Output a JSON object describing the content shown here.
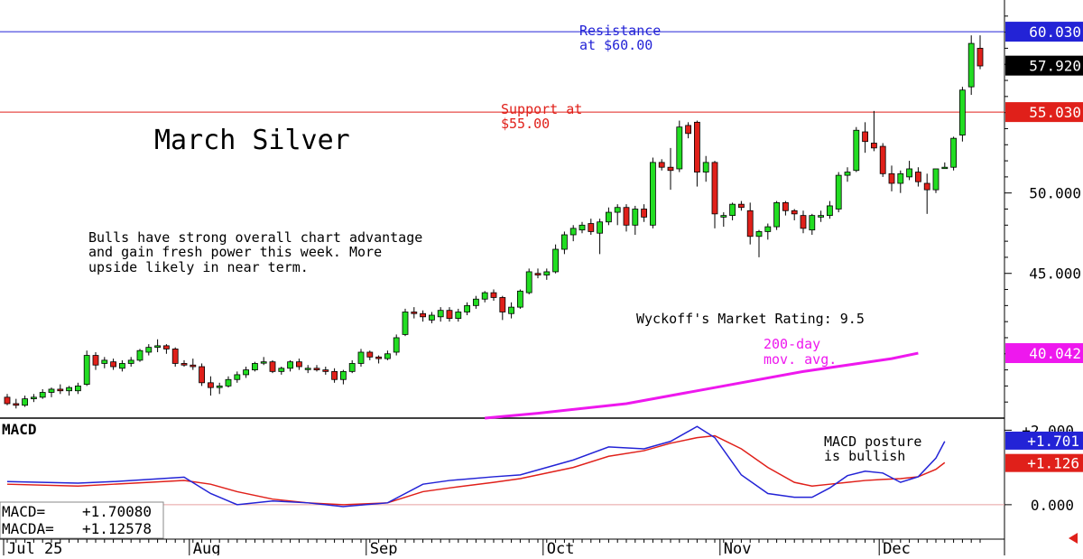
{
  "chart_data": [
    {
      "type": "candlestick",
      "title": "March Silver",
      "y_axis": {
        "scale": "linear",
        "ylim": [
          36.0,
          62.0
        ],
        "tick_labels": [
          "50.000",
          "45.000"
        ],
        "tick_values": [
          50.0,
          45.0
        ]
      },
      "x_axis": {
        "tick_labels": [
          "Jul 25",
          "Aug",
          "Sep",
          "Oct",
          "Nov",
          "Dec"
        ],
        "tick_index": [
          0,
          21,
          41,
          61,
          81,
          99
        ]
      },
      "horizontal_lines": [
        {
          "value": 60.03,
          "label": "60.030",
          "color": "#2323d6"
        },
        {
          "value": 55.03,
          "label": "55.030",
          "color": "#e0201a"
        }
      ],
      "last_price": {
        "value": 57.92,
        "label": "57.920"
      },
      "moving_average": {
        "name": "200-day mov. avg.",
        "label_value": "40.042",
        "value": 40.042,
        "color": "#ee18ee",
        "points": [
          [
            54,
            36.0
          ],
          [
            60,
            36.3
          ],
          [
            70,
            36.9
          ],
          [
            80,
            37.9
          ],
          [
            90,
            38.9
          ],
          [
            100,
            39.7
          ],
          [
            103,
            40.04
          ]
        ]
      },
      "annotations": {
        "resistance": [
          "Resistance",
          "at $60.00"
        ],
        "support": [
          "Support at",
          "$55.00"
        ],
        "commentary": [
          "Bulls have strong overall chart advantage",
          "and gain fresh power this week. More",
          "upside likely in near term."
        ],
        "rating": "Wyckoff's Market Rating: 9.5",
        "ma_label": [
          "200-day",
          "mov. avg."
        ]
      },
      "candles": [
        [
          37.3,
          37.5,
          36.8,
          36.9
        ],
        [
          36.9,
          37.2,
          36.6,
          36.8
        ],
        [
          36.8,
          37.4,
          36.7,
          37.2
        ],
        [
          37.2,
          37.5,
          37.0,
          37.3
        ],
        [
          37.3,
          37.8,
          37.2,
          37.6
        ],
        [
          37.6,
          37.9,
          37.3,
          37.8
        ],
        [
          37.8,
          38.1,
          37.5,
          37.7
        ],
        [
          37.7,
          38.0,
          37.4,
          37.9
        ],
        [
          37.7,
          38.2,
          37.5,
          38.0
        ],
        [
          38.1,
          40.2,
          38.0,
          39.9
        ],
        [
          39.9,
          40.1,
          39.0,
          39.3
        ],
        [
          39.4,
          39.8,
          39.1,
          39.6
        ],
        [
          39.5,
          39.7,
          39.0,
          39.2
        ],
        [
          39.1,
          39.6,
          38.9,
          39.4
        ],
        [
          39.4,
          39.8,
          39.2,
          39.6
        ],
        [
          39.6,
          40.3,
          39.5,
          40.2
        ],
        [
          40.1,
          40.6,
          39.9,
          40.4
        ],
        [
          40.4,
          40.9,
          40.1,
          40.5
        ],
        [
          40.5,
          40.6,
          40.0,
          40.3
        ],
        [
          40.3,
          40.4,
          39.2,
          39.4
        ],
        [
          39.4,
          39.6,
          39.2,
          39.3
        ],
        [
          39.3,
          39.7,
          39.0,
          39.2
        ],
        [
          39.2,
          39.4,
          38.0,
          38.2
        ],
        [
          38.2,
          38.6,
          37.4,
          37.9
        ],
        [
          37.9,
          38.2,
          37.5,
          38.0
        ],
        [
          38.0,
          38.6,
          37.9,
          38.4
        ],
        [
          38.4,
          38.9,
          38.2,
          38.7
        ],
        [
          38.7,
          39.2,
          38.5,
          39.0
        ],
        [
          39.0,
          39.5,
          38.9,
          39.4
        ],
        [
          39.5,
          39.8,
          39.3,
          39.5
        ],
        [
          39.5,
          39.6,
          38.8,
          38.9
        ],
        [
          38.9,
          39.2,
          38.7,
          39.1
        ],
        [
          39.1,
          39.6,
          38.9,
          39.5
        ],
        [
          39.5,
          39.7,
          39.0,
          39.2
        ],
        [
          39.1,
          39.3,
          38.8,
          39.1
        ],
        [
          39.1,
          39.3,
          38.9,
          39.0
        ],
        [
          39.0,
          39.2,
          38.7,
          38.9
        ],
        [
          38.9,
          39.1,
          38.2,
          38.4
        ],
        [
          38.4,
          39.0,
          38.1,
          38.9
        ],
        [
          38.9,
          39.6,
          38.8,
          39.4
        ],
        [
          39.4,
          40.3,
          39.2,
          40.1
        ],
        [
          40.1,
          40.2,
          39.6,
          39.8
        ],
        [
          39.8,
          39.9,
          39.4,
          39.7
        ],
        [
          39.7,
          40.2,
          39.6,
          40.0
        ],
        [
          40.1,
          41.2,
          39.9,
          41.0
        ],
        [
          41.2,
          42.8,
          41.1,
          42.6
        ],
        [
          42.6,
          42.9,
          42.2,
          42.5
        ],
        [
          42.5,
          42.7,
          42.0,
          42.3
        ],
        [
          42.1,
          42.6,
          41.9,
          42.4
        ],
        [
          42.3,
          42.9,
          42.0,
          42.7
        ],
        [
          42.7,
          42.9,
          42.0,
          42.2
        ],
        [
          42.2,
          42.8,
          42.0,
          42.6
        ],
        [
          42.6,
          43.2,
          42.4,
          43.0
        ],
        [
          43.0,
          43.6,
          42.8,
          43.4
        ],
        [
          43.4,
          43.9,
          43.2,
          43.8
        ],
        [
          43.8,
          44.0,
          43.3,
          43.5
        ],
        [
          43.5,
          43.6,
          42.1,
          42.6
        ],
        [
          42.5,
          43.2,
          42.2,
          42.9
        ],
        [
          42.9,
          44.0,
          42.8,
          43.9
        ],
        [
          43.8,
          45.3,
          43.7,
          45.1
        ],
        [
          45.0,
          45.3,
          44.7,
          44.9
        ],
        [
          44.9,
          45.3,
          44.6,
          45.1
        ],
        [
          45.1,
          46.8,
          45.0,
          46.5
        ],
        [
          46.5,
          47.6,
          46.2,
          47.4
        ],
        [
          47.4,
          48.0,
          47.0,
          47.8
        ],
        [
          47.7,
          48.2,
          47.5,
          48.0
        ],
        [
          48.1,
          48.4,
          47.4,
          47.6
        ],
        [
          47.5,
          48.4,
          46.2,
          48.2
        ],
        [
          48.2,
          49.1,
          48.0,
          48.8
        ],
        [
          48.8,
          49.3,
          48.0,
          49.1
        ],
        [
          49.1,
          49.3,
          47.6,
          48.0
        ],
        [
          48.0,
          49.2,
          47.4,
          49.0
        ],
        [
          49.0,
          49.3,
          48.2,
          48.5
        ],
        [
          48.0,
          52.2,
          47.8,
          51.9
        ],
        [
          51.9,
          52.1,
          51.4,
          51.6
        ],
        [
          51.6,
          52.8,
          50.2,
          51.4
        ],
        [
          51.5,
          54.5,
          51.3,
          54.1
        ],
        [
          54.2,
          54.4,
          53.4,
          53.7
        ],
        [
          54.4,
          54.5,
          50.4,
          51.3
        ],
        [
          51.3,
          52.3,
          50.7,
          51.9
        ],
        [
          51.9,
          52.0,
          47.8,
          48.7
        ],
        [
          48.5,
          48.8,
          47.9,
          48.6
        ],
        [
          48.6,
          49.4,
          48.3,
          49.3
        ],
        [
          49.3,
          49.5,
          48.9,
          49.1
        ],
        [
          48.9,
          49.4,
          46.8,
          47.3
        ],
        [
          47.3,
          47.7,
          46.0,
          47.6
        ],
        [
          47.6,
          48.1,
          47.1,
          47.9
        ],
        [
          47.9,
          49.5,
          47.7,
          49.4
        ],
        [
          49.4,
          49.5,
          48.6,
          48.9
        ],
        [
          48.9,
          49.0,
          48.3,
          48.7
        ],
        [
          48.6,
          48.9,
          47.5,
          47.8
        ],
        [
          47.7,
          48.7,
          47.4,
          48.6
        ],
        [
          48.5,
          48.9,
          48.2,
          48.6
        ],
        [
          48.6,
          49.5,
          48.4,
          49.2
        ],
        [
          49.0,
          51.3,
          48.8,
          51.1
        ],
        [
          51.1,
          51.6,
          50.7,
          51.3
        ],
        [
          51.4,
          54.1,
          51.3,
          53.9
        ],
        [
          53.8,
          54.4,
          52.5,
          53.2
        ],
        [
          53.1,
          55.1,
          52.6,
          52.8
        ],
        [
          52.9,
          53.1,
          51.0,
          51.2
        ],
        [
          51.2,
          51.7,
          50.1,
          50.6
        ],
        [
          50.6,
          51.4,
          50.0,
          51.2
        ],
        [
          51.0,
          52.0,
          50.8,
          51.5
        ],
        [
          51.3,
          51.6,
          50.4,
          50.7
        ],
        [
          50.6,
          51.2,
          48.7,
          50.2
        ],
        [
          50.2,
          51.5,
          50.0,
          51.5
        ],
        [
          51.6,
          51.9,
          51.5,
          51.6
        ],
        [
          51.6,
          53.5,
          51.4,
          53.4
        ],
        [
          53.6,
          56.6,
          53.2,
          56.4
        ],
        [
          56.6,
          59.8,
          56.1,
          59.3
        ],
        [
          59.0,
          59.8,
          57.7,
          57.9
        ]
      ]
    },
    {
      "type": "line",
      "title": "MACD",
      "ylim": [
        -0.9,
        2.3
      ],
      "tick_labels": [
        "+2.000",
        "0.000"
      ],
      "tick_values": [
        2.0,
        0.0
      ],
      "zero_line": 0.0,
      "series": [
        {
          "name": "MACD",
          "color": "#2323d6",
          "last_label": "+1.701",
          "points": [
            [
              0,
              0.62
            ],
            [
              8,
              0.58
            ],
            [
              12,
              0.62
            ],
            [
              16,
              0.68
            ],
            [
              20,
              0.74
            ],
            [
              23,
              0.3
            ],
            [
              26,
              0.0
            ],
            [
              30,
              0.1
            ],
            [
              34,
              0.05
            ],
            [
              38,
              -0.05
            ],
            [
              43,
              0.05
            ],
            [
              47,
              0.55
            ],
            [
              50,
              0.65
            ],
            [
              55,
              0.75
            ],
            [
              58,
              0.8
            ],
            [
              64,
              1.2
            ],
            [
              68,
              1.55
            ],
            [
              72,
              1.5
            ],
            [
              75,
              1.7
            ],
            [
              78,
              2.1
            ],
            [
              80,
              1.8
            ],
            [
              83,
              0.8
            ],
            [
              86,
              0.3
            ],
            [
              89,
              0.2
            ],
            [
              91,
              0.2
            ],
            [
              93,
              0.45
            ],
            [
              95,
              0.78
            ],
            [
              97,
              0.9
            ],
            [
              99,
              0.85
            ],
            [
              101,
              0.6
            ],
            [
              103,
              0.75
            ],
            [
              105,
              1.25
            ],
            [
              106,
              1.7
            ]
          ]
        },
        {
          "name": "MACDA",
          "color": "#e0201a",
          "last_label": "+1.126",
          "points": [
            [
              0,
              0.55
            ],
            [
              8,
              0.5
            ],
            [
              12,
              0.55
            ],
            [
              16,
              0.6
            ],
            [
              20,
              0.65
            ],
            [
              23,
              0.55
            ],
            [
              26,
              0.35
            ],
            [
              30,
              0.15
            ],
            [
              34,
              0.05
            ],
            [
              38,
              0.0
            ],
            [
              43,
              0.05
            ],
            [
              47,
              0.35
            ],
            [
              50,
              0.45
            ],
            [
              55,
              0.6
            ],
            [
              58,
              0.7
            ],
            [
              64,
              1.0
            ],
            [
              68,
              1.3
            ],
            [
              72,
              1.45
            ],
            [
              75,
              1.65
            ],
            [
              78,
              1.8
            ],
            [
              80,
              1.85
            ],
            [
              83,
              1.5
            ],
            [
              86,
              1.0
            ],
            [
              89,
              0.6
            ],
            [
              91,
              0.5
            ],
            [
              93,
              0.55
            ],
            [
              95,
              0.6
            ],
            [
              97,
              0.65
            ],
            [
              99,
              0.68
            ],
            [
              101,
              0.7
            ],
            [
              103,
              0.75
            ],
            [
              105,
              0.95
            ],
            [
              106,
              1.13
            ]
          ]
        }
      ],
      "annotation": [
        "MACD posture",
        "is bullish"
      ],
      "legend": [
        {
          "label": "MACD=",
          "value": "+1.70080"
        },
        {
          "label": "MACDA=",
          "value": "+1.12578"
        }
      ]
    }
  ]
}
